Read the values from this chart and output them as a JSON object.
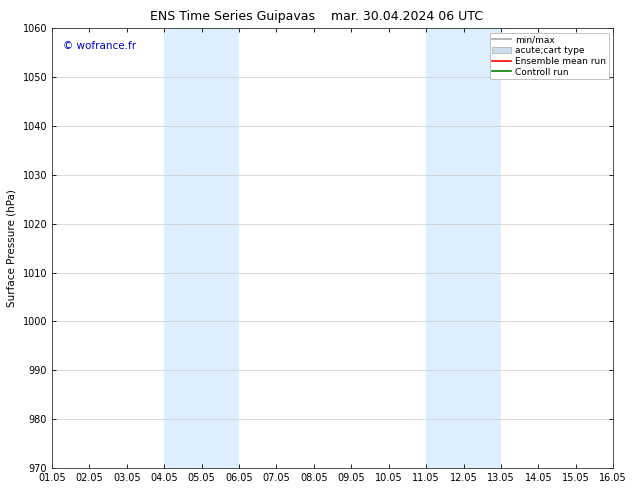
{
  "title_left": "ENS Time Series Guipavas",
  "title_right": "mar. 30.04.2024 06 UTC",
  "ylabel": "Surface Pressure (hPa)",
  "ylim": [
    970,
    1060
  ],
  "yticks": [
    970,
    980,
    990,
    1000,
    1010,
    1020,
    1030,
    1040,
    1050,
    1060
  ],
  "xlim": [
    0,
    15
  ],
  "xtick_labels": [
    "01.05",
    "02.05",
    "03.05",
    "04.05",
    "05.05",
    "06.05",
    "07.05",
    "08.05",
    "09.05",
    "10.05",
    "11.05",
    "12.05",
    "13.05",
    "14.05",
    "15.05",
    "16.05"
  ],
  "xtick_positions": [
    0,
    1,
    2,
    3,
    4,
    5,
    6,
    7,
    8,
    9,
    10,
    11,
    12,
    13,
    14,
    15
  ],
  "shaded_regions": [
    {
      "xmin": 3,
      "xmax": 5,
      "color": "#ddeeff"
    },
    {
      "xmin": 10,
      "xmax": 12,
      "color": "#ddeeff"
    }
  ],
  "watermark_text": "© wofrance.fr",
  "watermark_color": "#0000cc",
  "legend_entries": [
    {
      "label": "min/max",
      "color": "#aaaaaa",
      "lw": 1.2,
      "style": "line"
    },
    {
      "label": "acute;cart type",
      "color": "#ccddee",
      "lw": 5,
      "style": "bar"
    },
    {
      "label": "Ensemble mean run",
      "color": "red",
      "lw": 1.2,
      "style": "line"
    },
    {
      "label": "Controll run",
      "color": "green",
      "lw": 1.2,
      "style": "line"
    }
  ],
  "bg_color": "#ffffff",
  "grid_color": "#cccccc",
  "title_fontsize": 9,
  "tick_fontsize": 7,
  "ylabel_fontsize": 7.5,
  "watermark_fontsize": 7.5,
  "legend_fontsize": 6.5
}
